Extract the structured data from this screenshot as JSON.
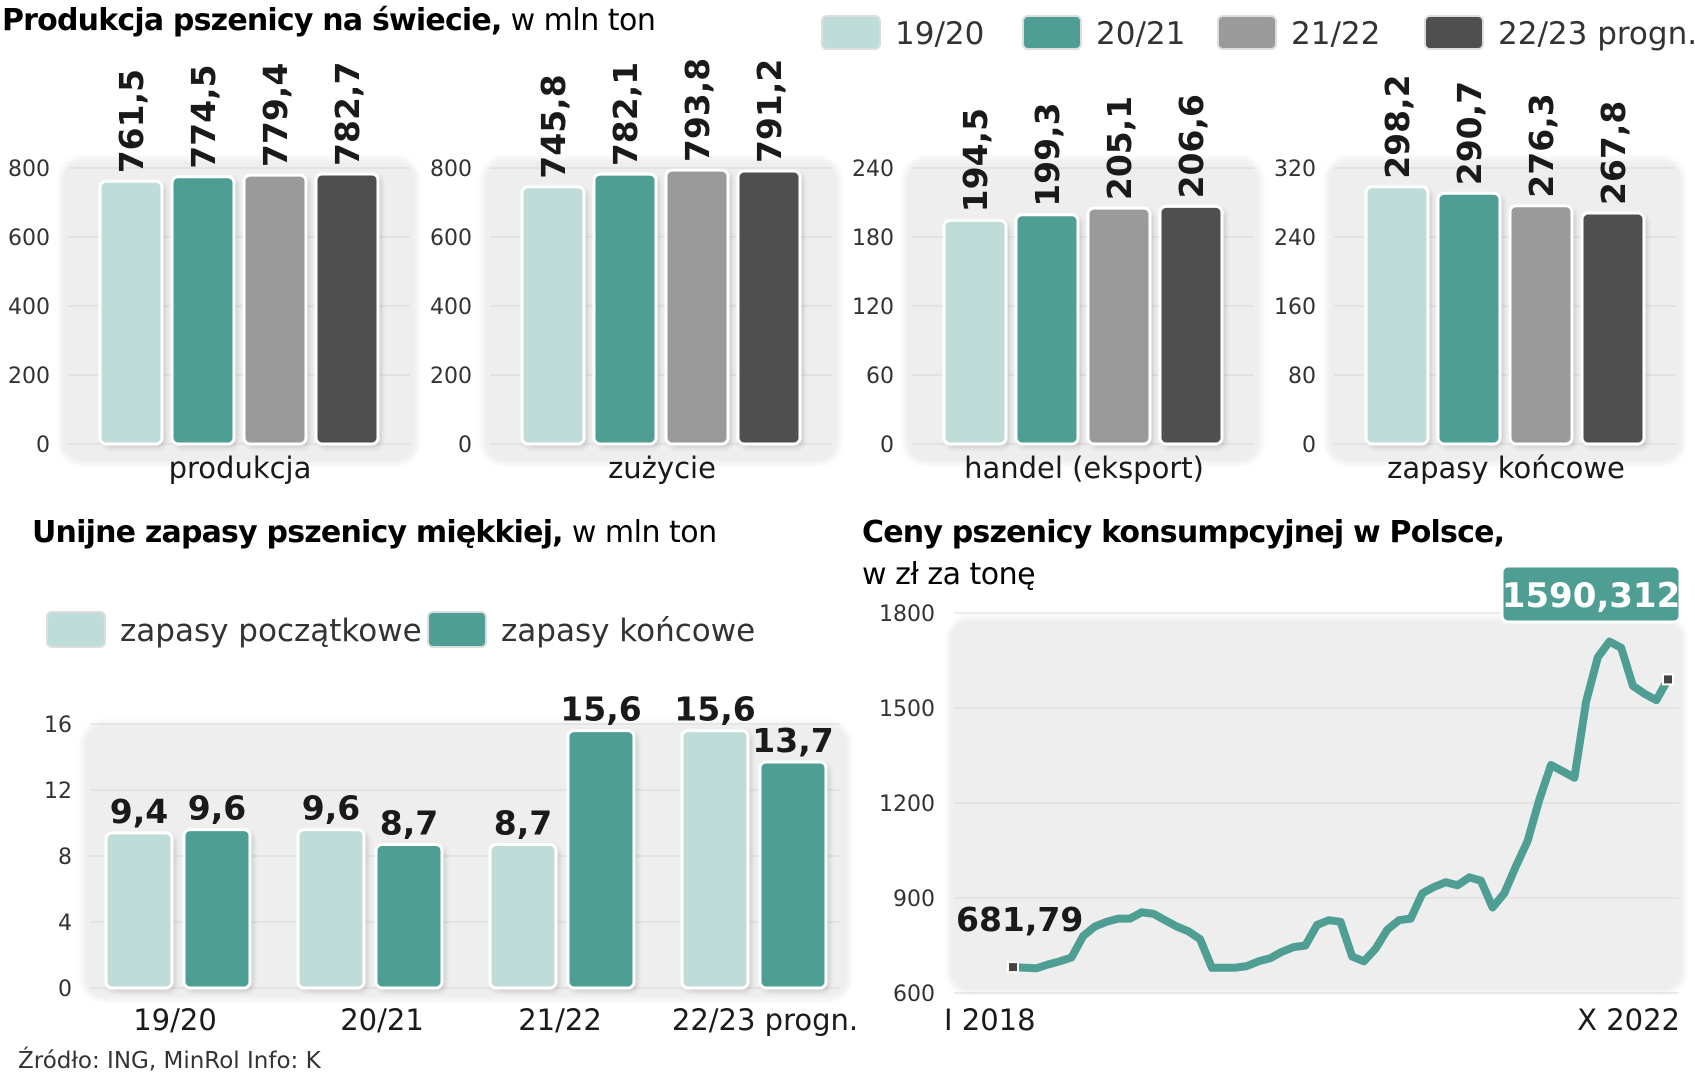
{
  "colors": {
    "c1920": "#bfddd8",
    "c2021": "#4e9e93",
    "c2122": "#9a9a9a",
    "c2223": "#4f4f4f",
    "panel": "#eeeeee",
    "line": "#4e9e93"
  },
  "top": {
    "title": "Produkcja pszenicy na świecie,",
    "subtitle": " w mln ton",
    "legend": [
      "19/20",
      "20/21",
      "21/22",
      "22/23 progn."
    ]
  },
  "eu": {
    "title": "Unijne zapasy pszenicy miękkiej,",
    "subtitle": " w mln ton",
    "legend": [
      "zapasy początkowe",
      "zapasy końcowe"
    ]
  },
  "price": {
    "title": "Ceny pszenicy konsumpcyjnej w Polsce,",
    "subtitle": "w zł za tonę",
    "callout": "1590,312",
    "start_label": "681,79"
  },
  "source": "Źródło: ING, MinRol  Info: K",
  "chart_data": [
    {
      "type": "bar",
      "title": "produkcja",
      "categories": [
        "19/20",
        "20/21",
        "21/22",
        "22/23 progn."
      ],
      "values": [
        761.5,
        774.5,
        779.4,
        782.7
      ],
      "labels": [
        "761,5",
        "774,5",
        "779,4",
        "782,7"
      ],
      "ylim": [
        0,
        800
      ],
      "ticks": [
        "0",
        "200",
        "400",
        "600",
        "800"
      ]
    },
    {
      "type": "bar",
      "title": "zużycie",
      "categories": [
        "19/20",
        "20/21",
        "21/22",
        "22/23 progn."
      ],
      "values": [
        745.8,
        782.1,
        793.8,
        791.2
      ],
      "labels": [
        "745,8",
        "782,1",
        "793,8",
        "791,2"
      ],
      "ylim": [
        0,
        800
      ],
      "ticks": [
        "0",
        "200",
        "400",
        "600",
        "800"
      ]
    },
    {
      "type": "bar",
      "title": "handel (eksport)",
      "categories": [
        "19/20",
        "20/21",
        "21/22",
        "22/23 progn."
      ],
      "values": [
        194.5,
        199.3,
        205.1,
        206.6
      ],
      "labels": [
        "194,5",
        "199,3",
        "205,1",
        "206,6"
      ],
      "ylim": [
        0,
        240
      ],
      "ticks": [
        "0",
        "60",
        "120",
        "180",
        "240"
      ]
    },
    {
      "type": "bar",
      "title": "zapasy końcowe",
      "categories": [
        "19/20",
        "20/21",
        "21/22",
        "22/23 progn."
      ],
      "values": [
        298.2,
        290.7,
        276.3,
        267.8
      ],
      "labels": [
        "298,2",
        "290,7",
        "276,3",
        "267,8"
      ],
      "ylim": [
        0,
        320
      ],
      "ticks": [
        "0",
        "80",
        "160",
        "240",
        "320"
      ]
    },
    {
      "type": "bar",
      "title": "Unijne zapasy pszenicy miękkiej",
      "categories": [
        "19/20",
        "20/21",
        "21/22",
        "22/23 progn."
      ],
      "series": [
        {
          "name": "zapasy początkowe",
          "values": [
            9.4,
            9.6,
            8.7,
            15.6
          ],
          "labels": [
            "9,4",
            "9,6",
            "8,7",
            "15,6"
          ]
        },
        {
          "name": "zapasy końcowe",
          "values": [
            9.6,
            8.7,
            15.6,
            13.7
          ],
          "labels": [
            "9,6",
            "8,7",
            "15,6",
            "13,7"
          ]
        }
      ],
      "ylim": [
        0,
        16
      ],
      "ticks": [
        "0",
        "4",
        "8",
        "12",
        "16"
      ]
    },
    {
      "type": "line",
      "title": "Ceny pszenicy konsumpcyjnej w Polsce",
      "ylabel": "w zł za tonę",
      "x_labels": [
        "I 2018",
        "X 2022"
      ],
      "ylim": [
        600,
        1800
      ],
      "ticks": [
        "600",
        "900",
        "1200",
        "1500",
        "1800"
      ],
      "values": [
        681.79,
        680,
        678,
        690,
        700,
        712,
        780,
        810,
        825,
        835,
        835,
        855,
        850,
        830,
        810,
        795,
        770,
        680,
        680,
        680,
        685,
        700,
        710,
        730,
        745,
        750,
        815,
        830,
        825,
        715,
        700,
        740,
        800,
        830,
        835,
        915,
        935,
        950,
        940,
        965,
        955,
        870,
        915,
        1000,
        1080,
        1210,
        1320,
        1300,
        1280,
        1520,
        1660,
        1710,
        1690,
        1570,
        1545,
        1525,
        1590.312
      ],
      "start_value": 681.79,
      "end_value": 1590.312
    }
  ]
}
